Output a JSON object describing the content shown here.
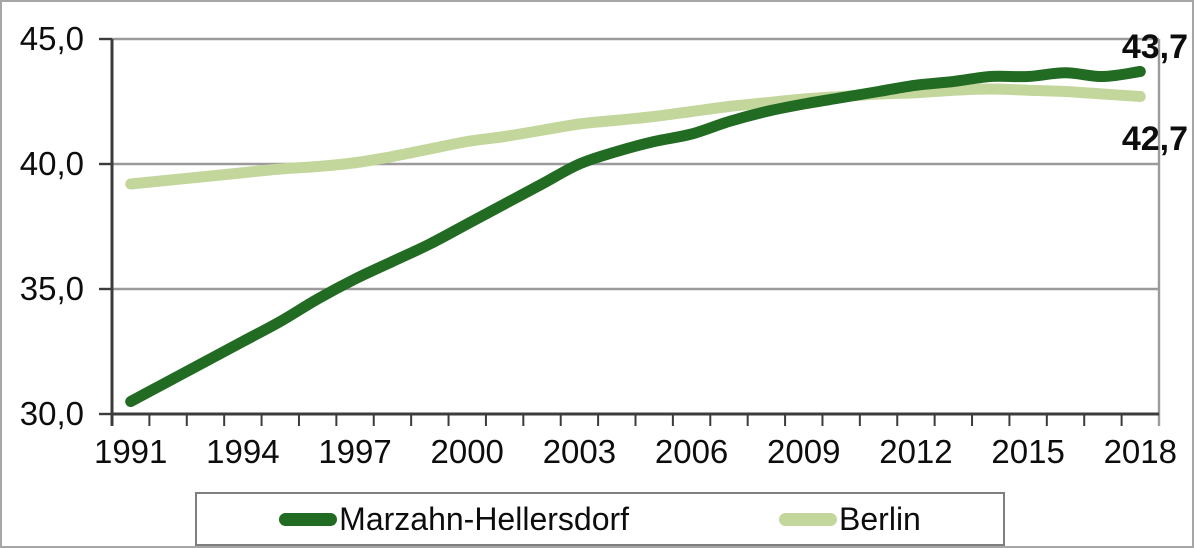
{
  "chart_data": {
    "type": "line",
    "title": "",
    "xlabel": "",
    "ylabel": "",
    "x": [
      1991,
      1992,
      1993,
      1994,
      1995,
      1996,
      1997,
      1998,
      1999,
      2000,
      2001,
      2002,
      2003,
      2004,
      2005,
      2006,
      2007,
      2008,
      2009,
      2010,
      2011,
      2012,
      2013,
      2014,
      2015,
      2016,
      2017,
      2018
    ],
    "series": [
      {
        "name": "Marzahn-Hellersdorf",
        "color": "#226b22",
        "end_label": "43,7",
        "values": [
          30.5,
          31.3,
          32.1,
          32.9,
          33.7,
          34.6,
          35.4,
          36.1,
          36.8,
          37.6,
          38.4,
          39.2,
          40.0,
          40.5,
          40.9,
          41.2,
          41.7,
          42.1,
          42.4,
          42.65,
          42.9,
          43.15,
          43.3,
          43.5,
          43.5,
          43.65,
          43.5,
          43.7
        ]
      },
      {
        "name": "Berlin",
        "color": "#c3d69b",
        "end_label": "42,7",
        "values": [
          39.2,
          39.35,
          39.5,
          39.65,
          39.8,
          39.9,
          40.05,
          40.3,
          40.6,
          40.9,
          41.1,
          41.35,
          41.6,
          41.75,
          41.9,
          42.1,
          42.3,
          42.45,
          42.6,
          42.7,
          42.8,
          42.85,
          42.95,
          43.0,
          42.95,
          42.9,
          42.8,
          42.7
        ]
      }
    ],
    "ylim": [
      30,
      45
    ],
    "yticks": [
      {
        "value": 30,
        "label": "30,0"
      },
      {
        "value": 35,
        "label": "35,0"
      },
      {
        "value": 40,
        "label": "40,0"
      },
      {
        "value": 45,
        "label": "45,0"
      }
    ],
    "xticks": [
      {
        "year": 1991,
        "label": "1991"
      },
      {
        "year": 1994,
        "label": "1994"
      },
      {
        "year": 1997,
        "label": "1997"
      },
      {
        "year": 2000,
        "label": "2000"
      },
      {
        "year": 2003,
        "label": "2003"
      },
      {
        "year": 2006,
        "label": "2006"
      },
      {
        "year": 2009,
        "label": "2009"
      },
      {
        "year": 2012,
        "label": "2012"
      },
      {
        "year": 2015,
        "label": "2015"
      },
      {
        "year": 2018,
        "label": "2018"
      }
    ],
    "grid": "horizontal",
    "legend_position": "bottom"
  },
  "legend": {
    "items": [
      {
        "label": "Marzahn-Hellersdorf"
      },
      {
        "label": "Berlin"
      }
    ]
  },
  "colors": {
    "grid": "#9b9b9b",
    "axis": "#3c3c3c",
    "plot_border": "#9b9b9b",
    "frame_border": "#a6a6a6",
    "background": "#ffffff"
  }
}
